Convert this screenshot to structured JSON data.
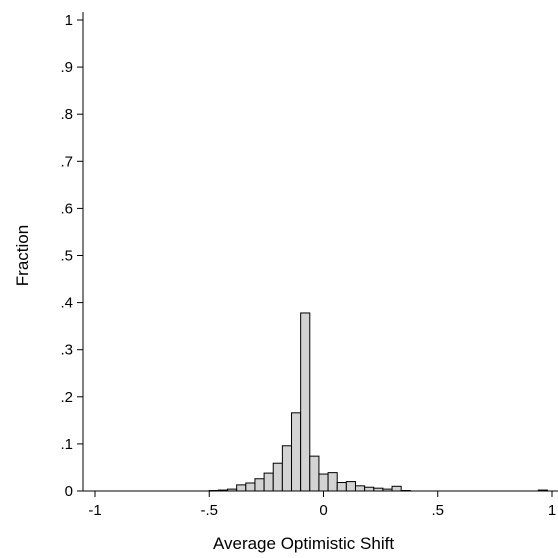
{
  "chart_data": {
    "type": "bar",
    "title": "",
    "xlabel": "Average Optimistic Shift",
    "ylabel": "Fraction",
    "xlim": [
      -1,
      1
    ],
    "ylim": [
      0,
      1
    ],
    "bin_width": 0.04,
    "x_ticks": [
      "-1",
      "-.5",
      "0",
      ".5",
      "1"
    ],
    "x_tick_values": [
      -1,
      -0.5,
      0,
      0.5,
      1
    ],
    "y_ticks": [
      "0",
      ".1",
      ".2",
      ".3",
      ".4",
      ".5",
      ".6",
      ".7",
      ".8",
      ".9",
      "1"
    ],
    "y_tick_values": [
      0,
      0.1,
      0.2,
      0.3,
      0.4,
      0.5,
      0.6,
      0.7,
      0.8,
      0.9,
      1
    ],
    "grid": false,
    "bar_fill": "#d3d3d3",
    "bar_stroke": "#000000",
    "bins": [
      {
        "x0": -0.5,
        "x1": -0.46,
        "value": 0.001
      },
      {
        "x0": -0.46,
        "x1": -0.42,
        "value": 0.002
      },
      {
        "x0": -0.42,
        "x1": -0.38,
        "value": 0.004
      },
      {
        "x0": -0.38,
        "x1": -0.34,
        "value": 0.013
      },
      {
        "x0": -0.34,
        "x1": -0.3,
        "value": 0.017
      },
      {
        "x0": -0.3,
        "x1": -0.26,
        "value": 0.026
      },
      {
        "x0": -0.26,
        "x1": -0.22,
        "value": 0.038
      },
      {
        "x0": -0.22,
        "x1": -0.18,
        "value": 0.059
      },
      {
        "x0": -0.18,
        "x1": -0.14,
        "value": 0.096
      },
      {
        "x0": -0.14,
        "x1": -0.1,
        "value": 0.166
      },
      {
        "x0": -0.1,
        "x1": -0.06,
        "value": 0.378
      },
      {
        "x0": -0.06,
        "x1": -0.02,
        "value": 0.074
      },
      {
        "x0": -0.02,
        "x1": 0.02,
        "value": 0.036
      },
      {
        "x0": 0.02,
        "x1": 0.06,
        "value": 0.039
      },
      {
        "x0": 0.06,
        "x1": 0.1,
        "value": 0.018
      },
      {
        "x0": 0.1,
        "x1": 0.14,
        "value": 0.02
      },
      {
        "x0": 0.14,
        "x1": 0.18,
        "value": 0.011
      },
      {
        "x0": 0.18,
        "x1": 0.22,
        "value": 0.008
      },
      {
        "x0": 0.22,
        "x1": 0.26,
        "value": 0.006
      },
      {
        "x0": 0.26,
        "x1": 0.3,
        "value": 0.004
      },
      {
        "x0": 0.3,
        "x1": 0.34,
        "value": 0.01
      },
      {
        "x0": 0.34,
        "x1": 0.38,
        "value": 0.001
      },
      {
        "x0": 0.94,
        "x1": 0.98,
        "value": 0.002
      }
    ]
  }
}
